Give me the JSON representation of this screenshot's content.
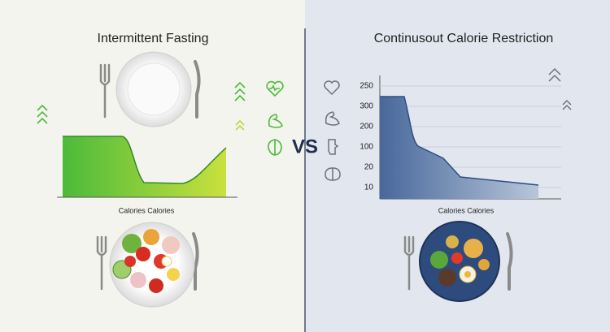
{
  "left": {
    "title": "Intermittent Fasting",
    "chart_label": "Calories Calories"
  },
  "center": {
    "vs": "VS"
  },
  "right": {
    "title": "Continusout Calorie Restriction",
    "chart_label": "Calories Calories",
    "axis_labels": [
      "250",
      "300",
      "200",
      "100",
      "20",
      "10"
    ]
  }
}
